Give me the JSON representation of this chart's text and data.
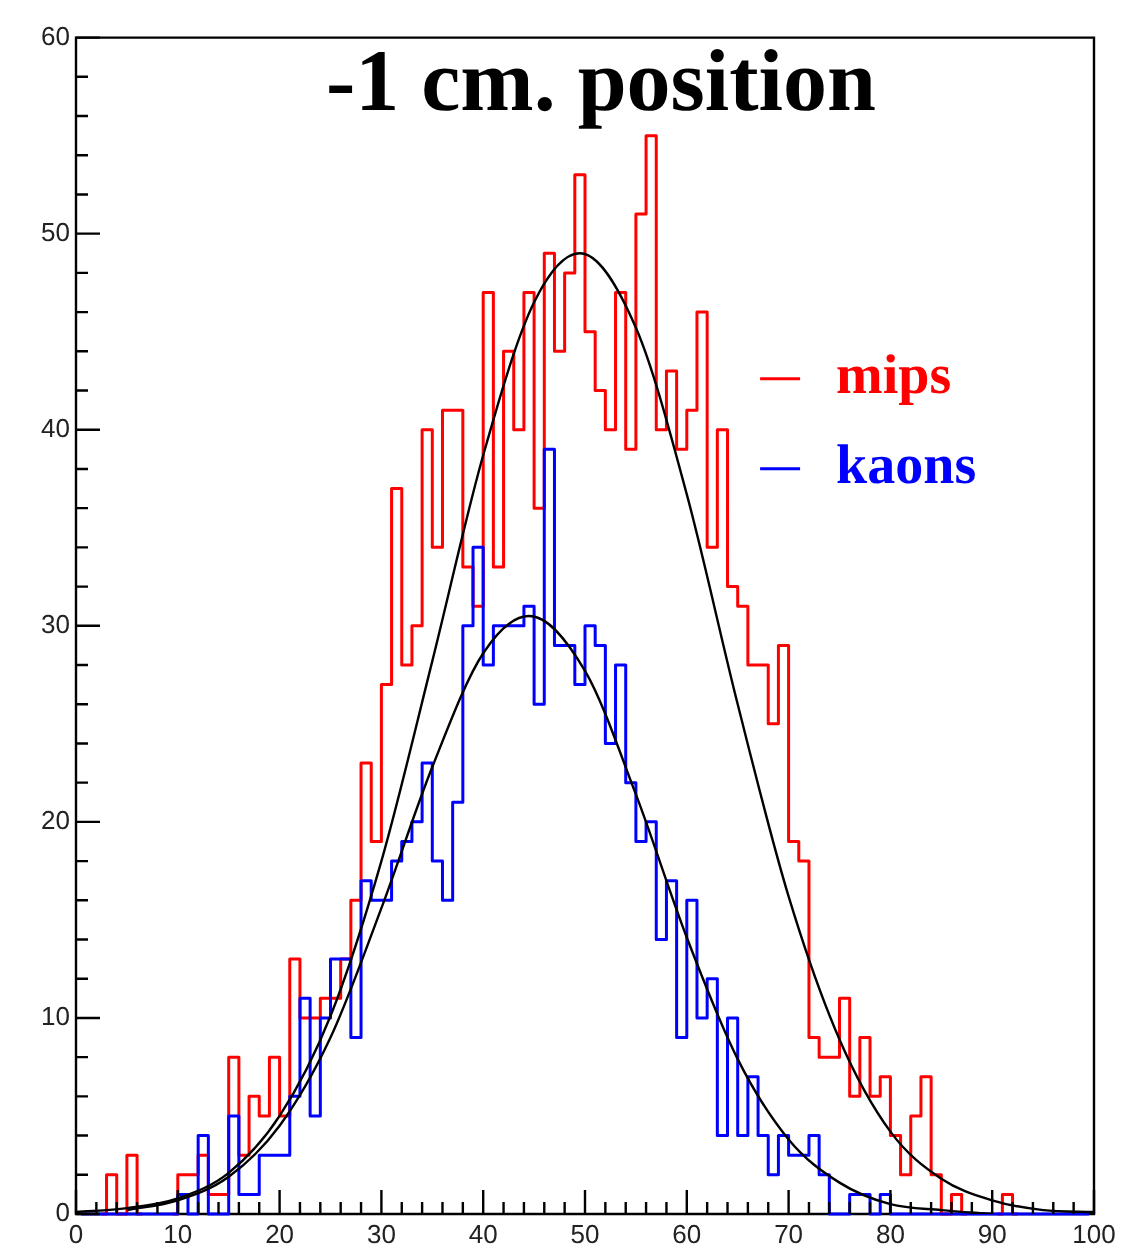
{
  "chart_data": {
    "type": "step",
    "title": "-1 cm. position",
    "x": [
      0.5,
      1.5,
      2.5,
      3.5,
      4.5,
      5.5,
      6.5,
      7.5,
      8.5,
      9.5,
      10.5,
      11.5,
      12.5,
      13.5,
      14.5,
      15.5,
      16.5,
      17.5,
      18.5,
      19.5,
      20.5,
      21.5,
      22.5,
      23.5,
      24.5,
      25.5,
      26.5,
      27.5,
      28.5,
      29.5,
      30.5,
      31.5,
      32.5,
      33.5,
      34.5,
      35.5,
      36.5,
      37.5,
      38.5,
      39.5,
      40.5,
      41.5,
      42.5,
      43.5,
      44.5,
      45.5,
      46.5,
      47.5,
      48.5,
      49.5,
      50.5,
      51.5,
      52.5,
      53.5,
      54.5,
      55.5,
      56.5,
      57.5,
      58.5,
      59.5,
      60.5,
      61.5,
      62.5,
      63.5,
      64.5,
      65.5,
      66.5,
      67.5,
      68.5,
      69.5,
      70.5,
      71.5,
      72.5,
      73.5,
      74.5,
      75.5,
      76.5,
      77.5,
      78.5,
      79.5,
      80.5,
      81.5,
      82.5,
      83.5,
      84.5,
      85.5,
      86.5,
      87.5,
      88.5,
      89.5,
      90.5,
      91.5,
      92.5,
      93.5,
      94.5,
      95.5,
      96.5,
      97.5,
      98.5,
      99.5
    ],
    "series": [
      {
        "name": "mips",
        "color": "#ff0000",
        "values": [
          null,
          null,
          0,
          2,
          0,
          3,
          0,
          null,
          null,
          0,
          2,
          2,
          3,
          1,
          1,
          8,
          3,
          6,
          5,
          8,
          5,
          13,
          10,
          10,
          11,
          11,
          13,
          16,
          23,
          19,
          27,
          37,
          28,
          30,
          40,
          34,
          41,
          41,
          33,
          31,
          47,
          33,
          44,
          40,
          47,
          36,
          49,
          44,
          48,
          53,
          45,
          42,
          40,
          47,
          39,
          51,
          55,
          40,
          43,
          39,
          41,
          46,
          34,
          40,
          32,
          31,
          28,
          28,
          25,
          29,
          19,
          18,
          9,
          8,
          8,
          11,
          6,
          9,
          6,
          7,
          4,
          2,
          5,
          7,
          2,
          0,
          1,
          0,
          null,
          null,
          0,
          1,
          0,
          null,
          null,
          null,
          null,
          null,
          null,
          null
        ]
      },
      {
        "name": "kaons",
        "color": "#0000ff",
        "values": [
          0,
          0,
          0,
          0,
          0,
          0,
          0,
          0,
          0,
          0,
          1,
          0,
          4,
          0,
          0,
          5,
          1,
          1,
          3,
          3,
          3,
          6,
          11,
          5,
          10,
          13,
          13,
          9,
          17,
          16,
          16,
          18,
          19,
          20,
          23,
          18,
          16,
          21,
          30,
          34,
          28,
          30,
          30,
          30,
          31,
          26,
          39,
          29,
          29,
          27,
          30,
          29,
          24,
          28,
          22,
          19,
          20,
          14,
          17,
          9,
          16,
          10,
          12,
          4,
          10,
          4,
          7,
          4,
          2,
          4,
          3,
          3,
          4,
          2,
          0,
          0,
          1,
          1,
          0,
          1,
          0,
          0,
          0,
          0,
          0,
          0,
          0,
          0,
          0,
          0,
          0,
          0,
          0,
          0,
          0,
          0,
          0,
          0,
          0,
          0
        ]
      },
      {
        "type": "line",
        "color": "#000000",
        "x": [
          0,
          5,
          10,
          15,
          20,
          25,
          30,
          35,
          40,
          45,
          49.5,
          55,
          60,
          65,
          70,
          75,
          80,
          85,
          90,
          95,
          100
        ],
        "values": [
          0.1,
          0.3,
          0.8,
          2.1,
          5.0,
          10.1,
          18.0,
          28.2,
          38.7,
          46.5,
          49,
          45.2,
          36.7,
          26.0,
          16.2,
          8.9,
          4.2,
          1.8,
          0.7,
          0.2,
          0.1
        ]
      },
      {
        "type": "line",
        "color": "#000000",
        "x": [
          5,
          10,
          15,
          20,
          25,
          30,
          35,
          40,
          44.5,
          50,
          55,
          60,
          65,
          70,
          75,
          80,
          85,
          90
        ],
        "values": [
          0.2,
          0.7,
          1.9,
          4.5,
          9.0,
          15.6,
          22.8,
          28.6,
          30.5,
          27.7,
          21.4,
          14.1,
          7.9,
          3.8,
          1.6,
          0.5,
          0.2,
          0.0
        ]
      }
    ],
    "xlim": [
      0,
      100
    ],
    "xticks": [
      0,
      {
        "value": 2,
        "label": null
      },
      {
        "value": 4,
        "label": null
      },
      {
        "value": 6,
        "label": null
      },
      {
        "value": 8,
        "label": null
      },
      10,
      {
        "value": 12,
        "label": null
      },
      {
        "value": 14,
        "label": null
      },
      {
        "value": 16,
        "label": null
      },
      {
        "value": 18,
        "label": null
      },
      20,
      {
        "value": 22,
        "label": null
      },
      {
        "value": 24,
        "label": null
      },
      {
        "value": 26,
        "label": null
      },
      {
        "value": 28,
        "label": null
      },
      30,
      {
        "value": 32,
        "label": null
      },
      {
        "value": 34,
        "label": null
      },
      {
        "value": 36,
        "label": null
      },
      {
        "value": 38,
        "label": null
      },
      40,
      {
        "value": 42,
        "label": null
      },
      {
        "value": 44,
        "label": null
      },
      {
        "value": 46,
        "label": null
      },
      {
        "value": 48,
        "label": null
      },
      50,
      {
        "value": 52,
        "label": null
      },
      {
        "value": 54,
        "label": null
      },
      {
        "value": 56,
        "label": null
      },
      {
        "value": 58,
        "label": null
      },
      60,
      {
        "value": 62,
        "label": null
      },
      {
        "value": 64,
        "label": null
      },
      {
        "value": 66,
        "label": null
      },
      {
        "value": 68,
        "label": null
      },
      70,
      {
        "value": 72,
        "label": null
      },
      {
        "value": 74,
        "label": null
      },
      {
        "value": 76,
        "label": null
      },
      {
        "value": 78,
        "label": null
      },
      80,
      {
        "value": 82,
        "label": null
      },
      {
        "value": 84,
        "label": null
      },
      {
        "value": 86,
        "label": null
      },
      {
        "value": 88,
        "label": null
      },
      90,
      {
        "value": 92,
        "label": null
      },
      {
        "value": 94,
        "label": null
      },
      {
        "value": 96,
        "label": null
      },
      {
        "value": 98,
        "label": null
      },
      100
    ],
    "ylim": [
      0,
      60
    ],
    "yticks": [
      0,
      {
        "value": 2,
        "label": null
      },
      {
        "value": 4,
        "label": null
      },
      {
        "value": 6,
        "label": null
      },
      {
        "value": 8,
        "label": null
      },
      10,
      {
        "value": 12,
        "label": null
      },
      {
        "value": 14,
        "label": null
      },
      {
        "value": 16,
        "label": null
      },
      {
        "value": 18,
        "label": null
      },
      20,
      {
        "value": 22,
        "label": null
      },
      {
        "value": 24,
        "label": null
      },
      {
        "value": 26,
        "label": null
      },
      {
        "value": 28,
        "label": null
      },
      30,
      {
        "value": 32,
        "label": null
      },
      {
        "value": 34,
        "label": null
      },
      {
        "value": 36,
        "label": null
      },
      {
        "value": 38,
        "label": null
      },
      40,
      {
        "value": 42,
        "label": null
      },
      {
        "value": 44,
        "label": null
      },
      {
        "value": 46,
        "label": null
      },
      {
        "value": 48,
        "label": null
      },
      50,
      {
        "value": 52,
        "label": null
      },
      {
        "value": 54,
        "label": null
      },
      {
        "value": 56,
        "label": null
      },
      {
        "value": 58,
        "label": null
      },
      60
    ],
    "legend": "top right"
  }
}
